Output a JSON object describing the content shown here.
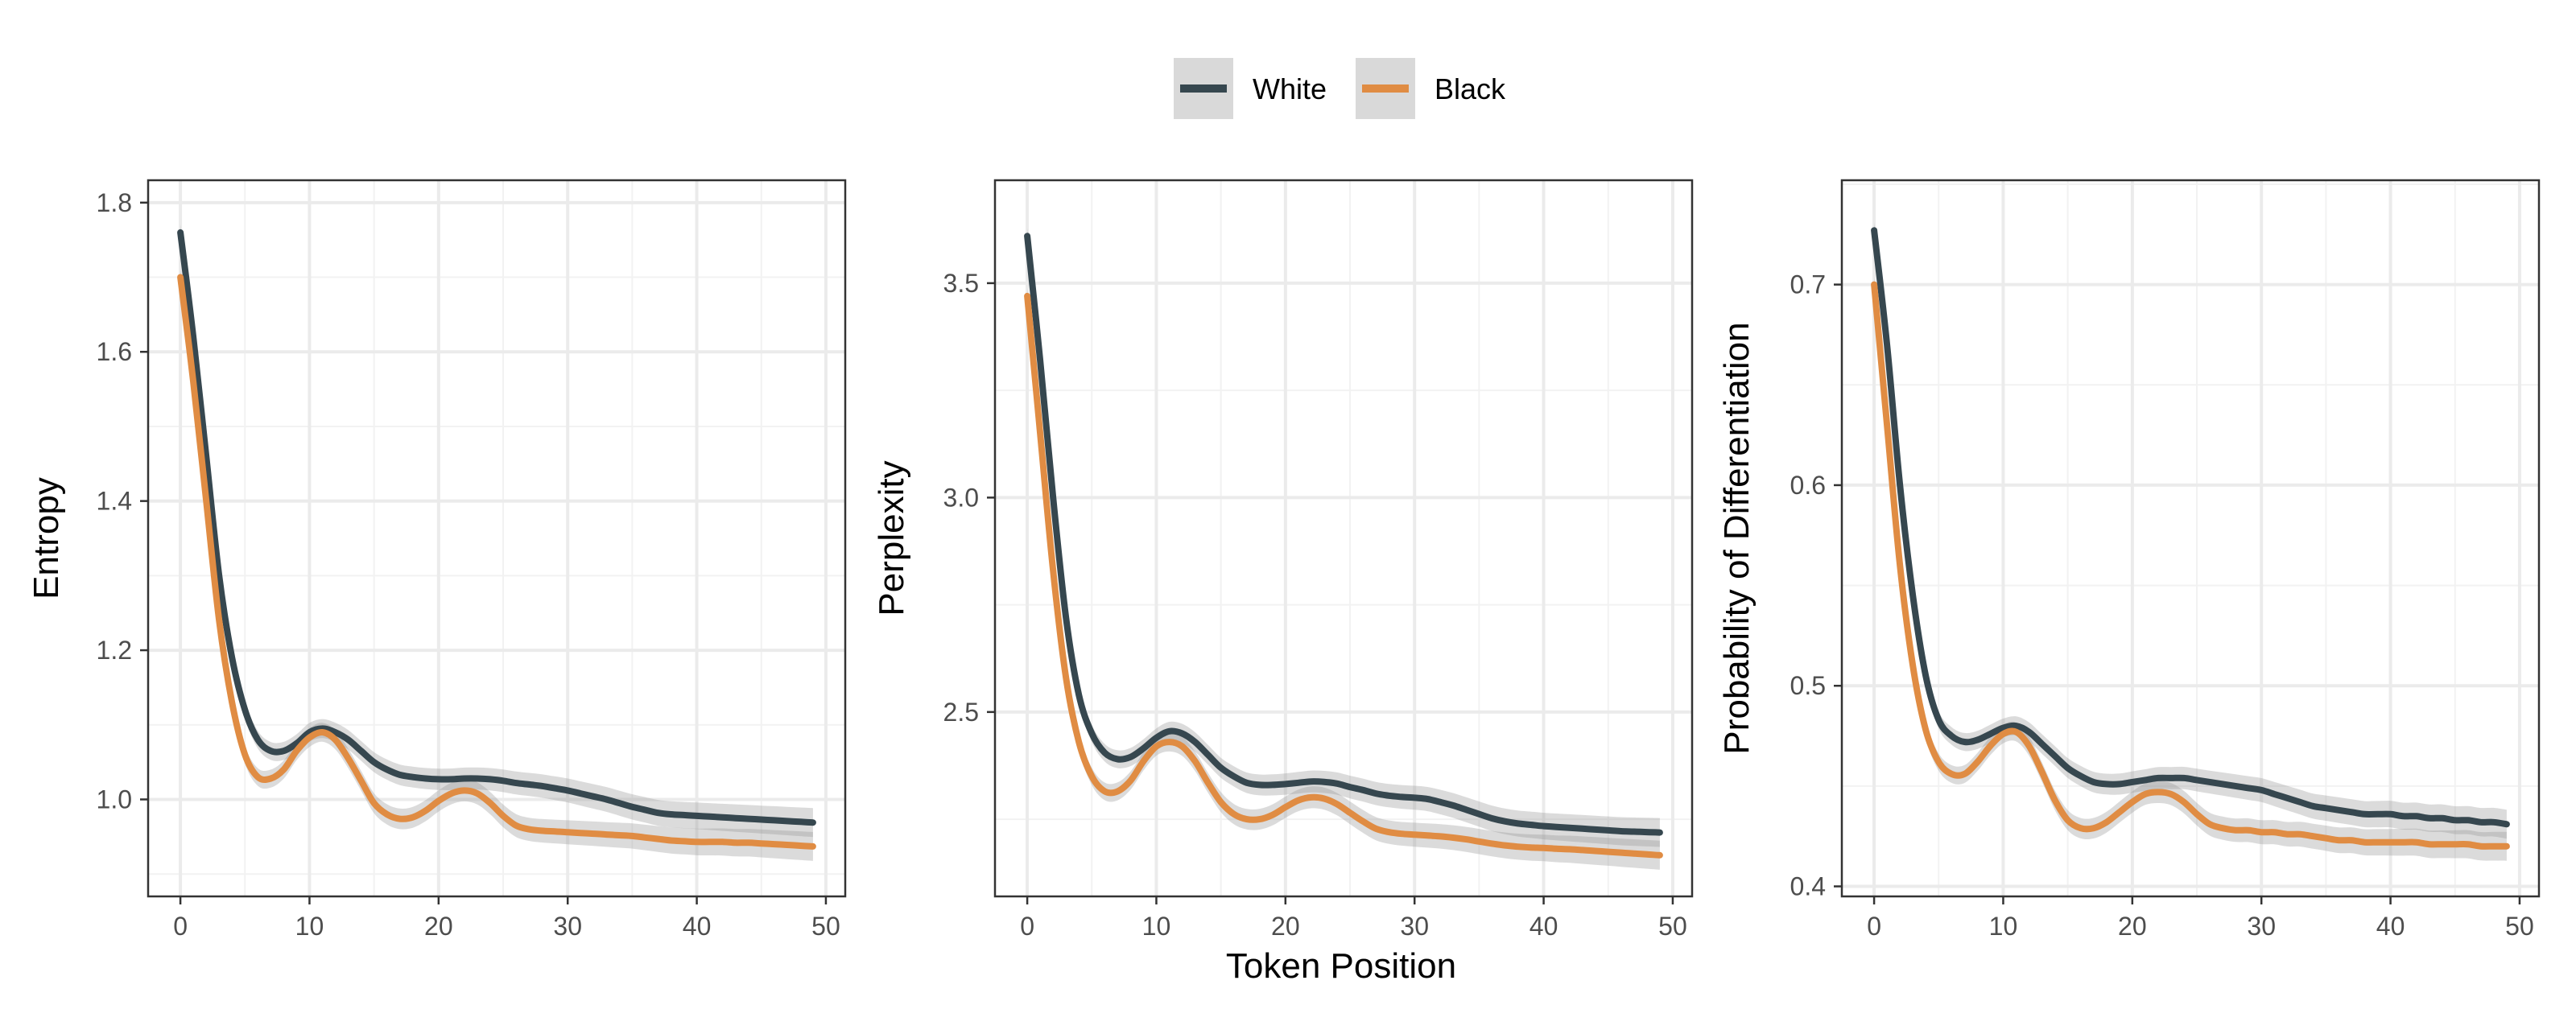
{
  "legend": {
    "position": "top",
    "items": [
      {
        "label": "White",
        "color": "#36474F"
      },
      {
        "label": "Black",
        "color": "#E08C43"
      }
    ]
  },
  "shared_xlabel": "Token Position",
  "chart_data": [
    {
      "type": "line",
      "ylabel": "Entropy",
      "xlim": [
        -2.5,
        51.5
      ],
      "ylim": [
        0.87,
        1.83
      ],
      "xticks": [
        0,
        10,
        20,
        30,
        40,
        50
      ],
      "yticks": [
        1.0,
        1.2,
        1.4,
        1.6,
        1.8
      ],
      "ytick_labels": [
        "1.0",
        "1.2",
        "1.4",
        "1.6",
        "1.8"
      ],
      "grid": true,
      "series": [
        {
          "name": "White",
          "color": "#36474F",
          "x": [
            0,
            1,
            2,
            3,
            4,
            5,
            6,
            7,
            8,
            9,
            10,
            11,
            12,
            13,
            14,
            15,
            16,
            17,
            18,
            19,
            20,
            21,
            22,
            23,
            24,
            25,
            26,
            27,
            28,
            29,
            30,
            31,
            32,
            33,
            34,
            35,
            36,
            37,
            38,
            39,
            40,
            41,
            42,
            43,
            44,
            45,
            46,
            47,
            48,
            49
          ],
          "y": [
            1.76,
            1.62,
            1.46,
            1.3,
            1.19,
            1.12,
            1.08,
            1.065,
            1.065,
            1.075,
            1.09,
            1.095,
            1.09,
            1.08,
            1.065,
            1.05,
            1.04,
            1.033,
            1.03,
            1.028,
            1.027,
            1.027,
            1.028,
            1.028,
            1.027,
            1.025,
            1.022,
            1.02,
            1.018,
            1.015,
            1.012,
            1.008,
            1.004,
            1.0,
            0.995,
            0.99,
            0.986,
            0.982,
            0.98,
            0.979,
            0.978,
            0.977,
            0.976,
            0.975,
            0.974,
            0.973,
            0.972,
            0.971,
            0.97,
            0.969
          ]
        },
        {
          "name": "Black",
          "color": "#E08C43",
          "x": [
            0,
            1,
            2,
            3,
            4,
            5,
            6,
            7,
            8,
            9,
            10,
            11,
            12,
            13,
            14,
            15,
            16,
            17,
            18,
            19,
            20,
            21,
            22,
            23,
            24,
            25,
            26,
            27,
            28,
            29,
            30,
            31,
            32,
            33,
            34,
            35,
            36,
            37,
            38,
            39,
            40,
            41,
            42,
            43,
            44,
            45,
            46,
            47,
            48,
            49
          ],
          "y": [
            1.7,
            1.56,
            1.4,
            1.24,
            1.13,
            1.06,
            1.03,
            1.028,
            1.04,
            1.065,
            1.083,
            1.09,
            1.08,
            1.055,
            1.025,
            0.995,
            0.98,
            0.974,
            0.976,
            0.985,
            0.998,
            1.008,
            1.012,
            1.008,
            0.995,
            0.978,
            0.965,
            0.96,
            0.958,
            0.957,
            0.956,
            0.955,
            0.954,
            0.953,
            0.952,
            0.951,
            0.949,
            0.947,
            0.945,
            0.944,
            0.943,
            0.943,
            0.943,
            0.942,
            0.942,
            0.941,
            0.94,
            0.939,
            0.938,
            0.937
          ]
        }
      ]
    },
    {
      "type": "line",
      "ylabel": "Perplexity",
      "xlim": [
        -2.5,
        51.5
      ],
      "ylim": [
        2.07,
        3.74
      ],
      "xticks": [
        0,
        10,
        20,
        30,
        40,
        50
      ],
      "yticks": [
        2.5,
        3.0,
        3.5
      ],
      "ytick_labels": [
        "2.5",
        "3.0",
        "3.5"
      ],
      "grid": true,
      "series": [
        {
          "name": "White",
          "color": "#36474F",
          "x": [
            0,
            1,
            2,
            3,
            4,
            5,
            6,
            7,
            8,
            9,
            10,
            11,
            12,
            13,
            14,
            15,
            16,
            17,
            18,
            19,
            20,
            21,
            22,
            23,
            24,
            25,
            26,
            27,
            28,
            29,
            30,
            31,
            32,
            33,
            34,
            35,
            36,
            37,
            38,
            39,
            40,
            41,
            42,
            43,
            44,
            45,
            46,
            47,
            48,
            49
          ],
          "y": [
            3.61,
            3.32,
            3.0,
            2.72,
            2.54,
            2.45,
            2.405,
            2.39,
            2.395,
            2.415,
            2.44,
            2.455,
            2.45,
            2.43,
            2.4,
            2.37,
            2.35,
            2.335,
            2.33,
            2.33,
            2.332,
            2.335,
            2.338,
            2.337,
            2.333,
            2.325,
            2.318,
            2.31,
            2.305,
            2.302,
            2.3,
            2.297,
            2.29,
            2.282,
            2.272,
            2.262,
            2.252,
            2.245,
            2.24,
            2.237,
            2.234,
            2.232,
            2.23,
            2.228,
            2.226,
            2.224,
            2.222,
            2.221,
            2.22,
            2.219
          ]
        },
        {
          "name": "Black",
          "color": "#E08C43",
          "x": [
            0,
            1,
            2,
            3,
            4,
            5,
            6,
            7,
            8,
            9,
            10,
            11,
            12,
            13,
            14,
            15,
            16,
            17,
            18,
            19,
            20,
            21,
            22,
            23,
            24,
            25,
            26,
            27,
            28,
            29,
            30,
            31,
            32,
            33,
            34,
            35,
            36,
            37,
            38,
            39,
            40,
            41,
            42,
            43,
            44,
            45,
            46,
            47,
            48,
            49
          ],
          "y": [
            3.47,
            3.15,
            2.83,
            2.58,
            2.43,
            2.35,
            2.315,
            2.315,
            2.34,
            2.385,
            2.42,
            2.43,
            2.42,
            2.385,
            2.335,
            2.29,
            2.262,
            2.25,
            2.25,
            2.26,
            2.278,
            2.294,
            2.301,
            2.298,
            2.285,
            2.265,
            2.245,
            2.228,
            2.22,
            2.216,
            2.214,
            2.212,
            2.21,
            2.207,
            2.203,
            2.198,
            2.193,
            2.189,
            2.186,
            2.184,
            2.183,
            2.181,
            2.18,
            2.178,
            2.176,
            2.174,
            2.172,
            2.17,
            2.168,
            2.166
          ]
        }
      ]
    },
    {
      "type": "line",
      "ylabel": "Probability of Differentiation",
      "xlim": [
        -2.5,
        51.5
      ],
      "ylim": [
        0.395,
        0.752
      ],
      "xticks": [
        0,
        10,
        20,
        30,
        40,
        50
      ],
      "yticks": [
        0.4,
        0.5,
        0.6,
        0.7
      ],
      "ytick_labels": [
        "0.4",
        "0.5",
        "0.6",
        "0.7"
      ],
      "grid": true,
      "series": [
        {
          "name": "White",
          "color": "#36474F",
          "x": [
            0,
            1,
            2,
            3,
            4,
            5,
            6,
            7,
            8,
            9,
            10,
            11,
            12,
            13,
            14,
            15,
            16,
            17,
            18,
            19,
            20,
            21,
            22,
            23,
            24,
            25,
            26,
            27,
            28,
            29,
            30,
            31,
            32,
            33,
            34,
            35,
            36,
            37,
            38,
            39,
            40,
            41,
            42,
            43,
            44,
            45,
            46,
            47,
            48,
            49
          ],
          "y": [
            0.727,
            0.67,
            0.6,
            0.545,
            0.505,
            0.483,
            0.475,
            0.472,
            0.473,
            0.476,
            0.479,
            0.48,
            0.477,
            0.471,
            0.465,
            0.459,
            0.455,
            0.452,
            0.451,
            0.451,
            0.452,
            0.453,
            0.454,
            0.454,
            0.454,
            0.453,
            0.452,
            0.451,
            0.45,
            0.449,
            0.448,
            0.446,
            0.444,
            0.442,
            0.44,
            0.439,
            0.438,
            0.437,
            0.436,
            0.436,
            0.436,
            0.435,
            0.435,
            0.434,
            0.434,
            0.433,
            0.433,
            0.432,
            0.432,
            0.431
          ]
        },
        {
          "name": "Black",
          "color": "#E08C43",
          "x": [
            0,
            1,
            2,
            3,
            4,
            5,
            6,
            7,
            8,
            9,
            10,
            11,
            12,
            13,
            14,
            15,
            16,
            17,
            18,
            19,
            20,
            21,
            22,
            23,
            24,
            25,
            26,
            27,
            28,
            29,
            30,
            31,
            32,
            33,
            34,
            35,
            36,
            37,
            38,
            39,
            40,
            41,
            42,
            43,
            44,
            45,
            46,
            47,
            48,
            49
          ],
          "y": [
            0.7,
            0.63,
            0.56,
            0.51,
            0.478,
            0.462,
            0.456,
            0.456,
            0.462,
            0.47,
            0.476,
            0.477,
            0.47,
            0.457,
            0.443,
            0.433,
            0.429,
            0.429,
            0.432,
            0.437,
            0.442,
            0.446,
            0.447,
            0.446,
            0.442,
            0.436,
            0.431,
            0.429,
            0.428,
            0.428,
            0.427,
            0.427,
            0.426,
            0.426,
            0.425,
            0.424,
            0.423,
            0.423,
            0.422,
            0.422,
            0.422,
            0.422,
            0.422,
            0.421,
            0.421,
            0.421,
            0.421,
            0.42,
            0.42,
            0.42
          ]
        }
      ]
    }
  ]
}
